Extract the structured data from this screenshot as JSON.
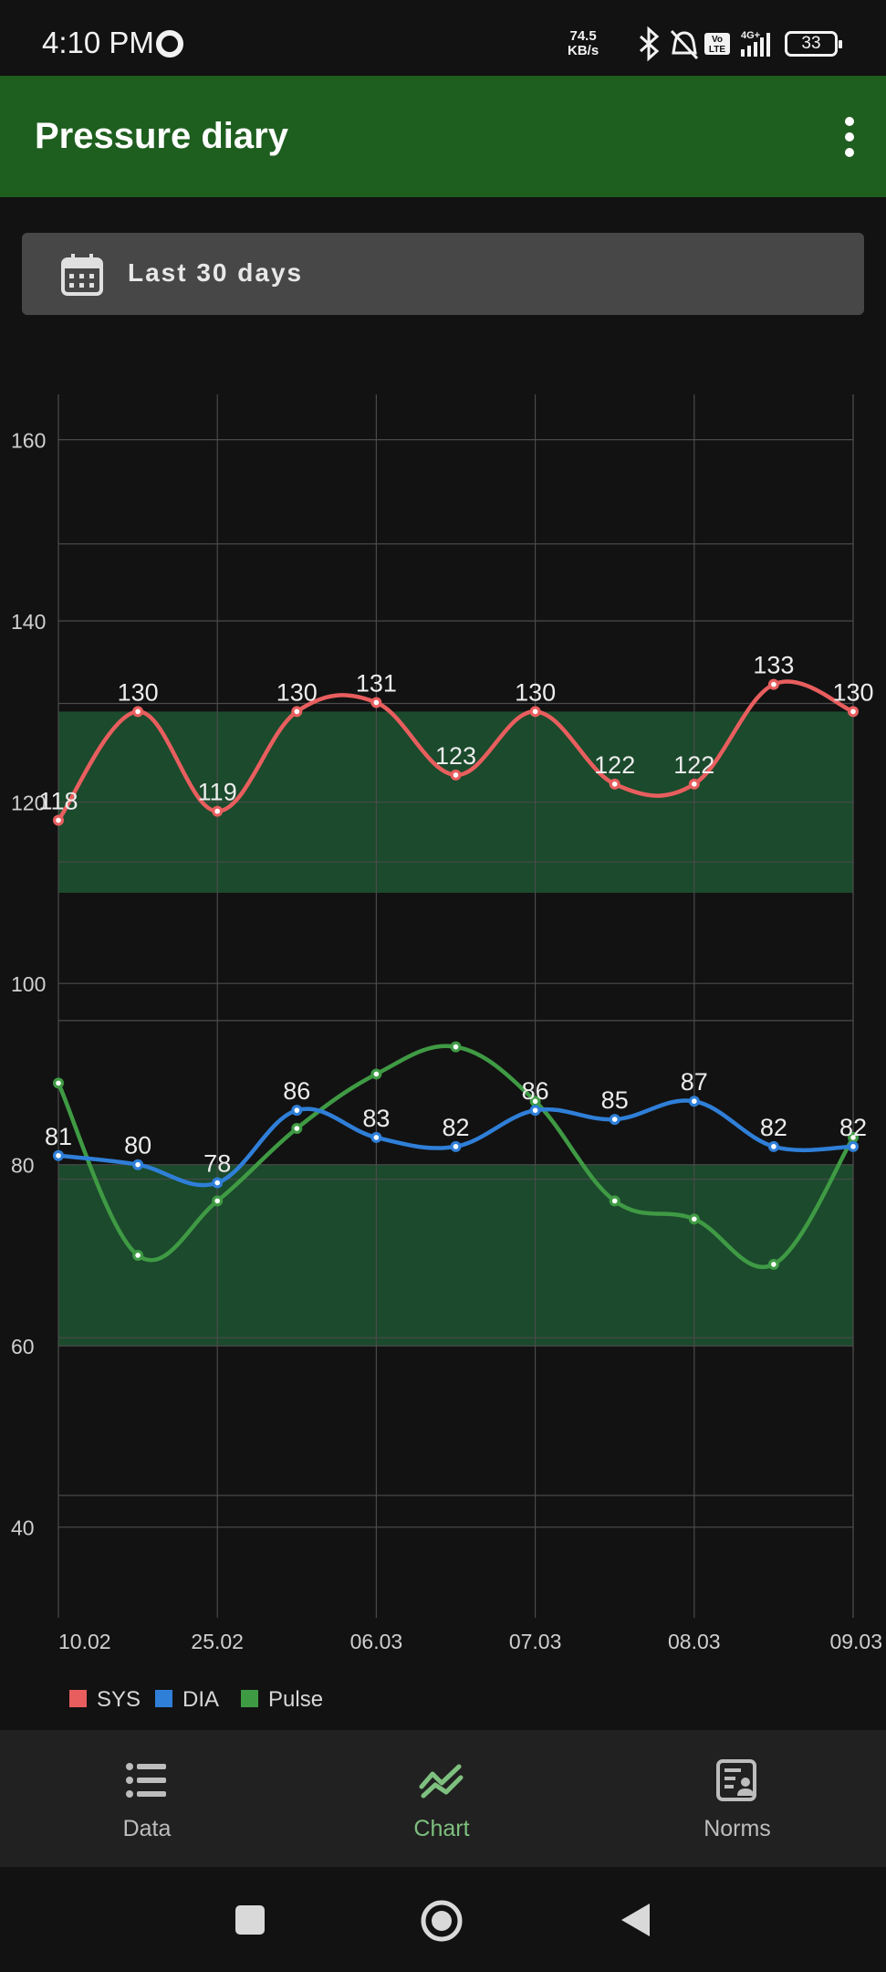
{
  "status_bar": {
    "time": "4:10 PM",
    "net_speed_value": "74.5",
    "net_speed_unit": "KB/s",
    "network": "4G+",
    "volte": "Vo LTE",
    "battery": "33",
    "icons": [
      "bluetooth-icon",
      "bell-muted-icon",
      "volte-icon",
      "signal-icon",
      "battery-icon"
    ]
  },
  "app_bar": {
    "title": "Pressure diary",
    "menu_icon": "more-vertical-icon",
    "color": "#1e5e1f"
  },
  "date_filter": {
    "label": "Last 30 days",
    "icon": "calendar-icon"
  },
  "chart_data": {
    "type": "line",
    "x": [
      "10.02",
      "",
      "25.02",
      "",
      "06.03",
      "",
      "07.03",
      "",
      "08.03",
      "",
      "09.03"
    ],
    "x_tick_labels": [
      "10.02",
      "25.02",
      "06.03",
      "07.03",
      "08.03",
      "09.03"
    ],
    "y_tick_labels": [
      "160",
      "140",
      "120",
      "100",
      "80",
      "60",
      "40"
    ],
    "ylim": [
      30,
      165
    ],
    "grid": true,
    "legend_position": "bottom-left",
    "series": [
      {
        "name": "SYS",
        "color": "#e85e5e",
        "values": [
          118,
          130,
          119,
          130,
          131,
          123,
          130,
          122,
          122,
          133,
          130
        ],
        "labels": true
      },
      {
        "name": "DIA",
        "color": "#2f7fd8",
        "values": [
          81,
          80,
          78,
          86,
          83,
          82,
          86,
          85,
          87,
          82,
          82
        ],
        "labels": true
      },
      {
        "name": "Pulse",
        "color": "#3f9a44",
        "values": [
          89,
          70,
          76,
          84,
          90,
          93,
          87,
          76,
          74,
          69,
          83
        ],
        "labels": false
      }
    ],
    "norm_bands": [
      {
        "from": 110,
        "to": 130,
        "color": "#1b4a2c"
      },
      {
        "from": 60,
        "to": 80,
        "color": "#1b4a2c"
      }
    ]
  },
  "bottom_nav": {
    "items": [
      {
        "label": "Data",
        "icon": "list-icon",
        "active": false
      },
      {
        "label": "Chart",
        "icon": "chart-icon",
        "active": true
      },
      {
        "label": "Norms",
        "icon": "norms-icon",
        "active": false
      }
    ]
  },
  "system_nav": {
    "buttons": [
      "recents-button",
      "home-button",
      "back-button"
    ]
  }
}
